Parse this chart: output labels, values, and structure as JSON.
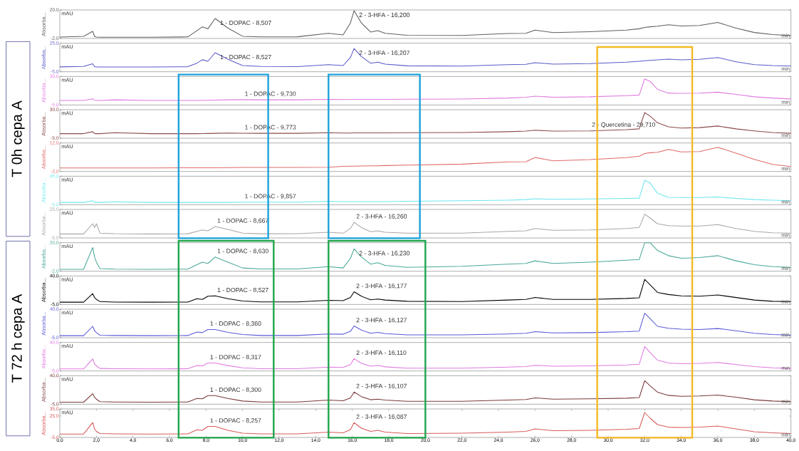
{
  "chart_data": [
    {
      "type": "line",
      "color": "#606060",
      "ylabel": "Absorba...",
      "xlabel": "min",
      "tick_labels": "y",
      "xlim": [
        0,
        40
      ],
      "ylim": [
        -2,
        20
      ],
      "yticks": [
        {
          "value": -2,
          "label": "-2,0"
        },
        {
          "value": 20,
          "label": "20,0"
        }
      ],
      "x": [
        0,
        1.3,
        1.8,
        1.9,
        2.0,
        2.2,
        3,
        5,
        7,
        7.5,
        7.8,
        8.1,
        8.5,
        9.2,
        10,
        11,
        13,
        14.7,
        15.5,
        15.9,
        16.1,
        16.5,
        17,
        17.4,
        17.8,
        19,
        22,
        24.5,
        25.5,
        26,
        27,
        29,
        31,
        31.7,
        32,
        32.3,
        32.7,
        33.3,
        34,
        35,
        36,
        37,
        38,
        39,
        40
      ],
      "values": [
        -0.9,
        -0.3,
        3.5,
        -0.5,
        -0.9,
        -1.0,
        -1.0,
        -1.0,
        -0.8,
        4,
        7,
        5.5,
        13.4,
        6,
        -0.3,
        -0.8,
        -0.7,
        2.0,
        0.8,
        10,
        19.5,
        10,
        3,
        4,
        2,
        0.5,
        0.3,
        1.8,
        2,
        4.5,
        2.5,
        3.2,
        4.5,
        5.5,
        6.5,
        7,
        7.5,
        8.6,
        7.6,
        8,
        10.4,
        6,
        2.6,
        1,
        0.2
      ],
      "annotations": [
        "mAU",
        {
          "text": "1 - DOPAC - 8,507",
          "x": 8.5,
          "y": 13.4
        },
        {
          "text": "2 - 3-HFA - 16,200",
          "x": 16.1,
          "y": 19.5
        }
      ]
    },
    {
      "type": "line",
      "color": "#5a5ac8",
      "ylabel": "Absorba...",
      "xlabel": "min",
      "tick_labels": "y",
      "xlim": [
        0,
        40
      ],
      "ylim": [
        -5,
        25
      ],
      "yticks": [
        {
          "value": -5,
          "label": "-5,0"
        },
        {
          "value": 25,
          "label": "25,0"
        }
      ],
      "x": [
        0,
        1.3,
        1.8,
        1.9,
        2.0,
        2.2,
        3,
        5,
        7,
        7.5,
        7.8,
        8.1,
        8.5,
        9.2,
        10,
        11,
        13,
        14.7,
        15.5,
        15.9,
        16.1,
        16.5,
        17,
        17.4,
        17.8,
        19,
        22,
        24.5,
        25.5,
        26,
        27,
        29,
        31,
        31.7,
        32,
        32.3,
        32.7,
        33.3,
        34,
        35,
        36,
        37,
        38,
        39,
        40
      ],
      "values": [
        0.1,
        0.6,
        3.4,
        0.4,
        0.1,
        0,
        0,
        0,
        0.3,
        4,
        7.6,
        6,
        15,
        8,
        1.5,
        0.5,
        0.4,
        2.5,
        1.5,
        10,
        19.4,
        11,
        4,
        5,
        3,
        1.2,
        1,
        2.5,
        2.8,
        4.5,
        3,
        3.5,
        5,
        6,
        6.5,
        7,
        7.5,
        8.2,
        7.5,
        8,
        10,
        5.5,
        2.5,
        1.5,
        1
      ],
      "annotations": [
        "mAU",
        {
          "text": "1 - DOPAC - 8,527",
          "x": 8.5,
          "y": 15
        },
        {
          "text": "2 - 3-HFA - 16,207",
          "x": 16.1,
          "y": 19.4
        },
        "T 0h cepa A"
      ]
    },
    {
      "type": "line",
      "color": "#e07be0",
      "ylabel": "Absorba...",
      "xlabel": "min",
      "tick_labels": "y",
      "xlim": [
        0,
        40
      ],
      "ylim": [
        -5,
        30
      ],
      "yticks": [
        {
          "value": -5,
          "label": "-5,0"
        },
        {
          "value": 30,
          "label": "30,0"
        }
      ],
      "x": [
        0,
        1.3,
        1.8,
        1.9,
        2.0,
        2.2,
        3,
        5,
        7,
        7.5,
        7.8,
        8.1,
        8.5,
        9.2,
        10,
        11,
        13,
        14.7,
        15.5,
        15.9,
        16.1,
        16.5,
        17,
        17.4,
        17.8,
        19,
        22,
        24.5,
        25.5,
        26,
        27,
        29,
        31,
        31.7,
        32,
        32.3,
        32.7,
        33.3,
        34,
        35,
        36,
        37,
        38,
        39,
        40
      ],
      "values": [
        0.6,
        0.6,
        2.5,
        0.7,
        0.6,
        0.6,
        1.3,
        0.6,
        0.6,
        0.6,
        0.7,
        0.8,
        1.0,
        1.3,
        1.5,
        1.3,
        1.3,
        1.8,
        1.6,
        1.7,
        1.8,
        1.8,
        1.8,
        1.9,
        1.9,
        2,
        2.3,
        3.5,
        4.5,
        5.8,
        4.5,
        5,
        6.5,
        7.2,
        27,
        24,
        14,
        9.6,
        9.3,
        9.5,
        10.7,
        8,
        5,
        3.5,
        2.4
      ],
      "annotations": [
        "mAU",
        {
          "text": "1 - DOPAC - 9,730",
          "x": 10,
          "y": 1.5
        }
      ]
    },
    {
      "type": "line",
      "color": "#8c4a4a",
      "ylabel": "Absorba...",
      "xlabel": "min",
      "tick_labels": "y",
      "xlim": [
        0,
        40
      ],
      "ylim": [
        -5,
        30
      ],
      "yticks": [
        {
          "value": -5,
          "label": "-5,0"
        },
        {
          "value": 30,
          "label": "30,0"
        }
      ],
      "x": [
        0,
        1.3,
        1.8,
        1.9,
        2.0,
        2.2,
        3,
        5,
        7,
        7.5,
        7.8,
        8.1,
        8.5,
        9.2,
        10,
        11,
        13,
        14.7,
        15.5,
        15.9,
        16.1,
        16.5,
        17,
        17.4,
        17.8,
        19,
        22,
        24.5,
        25.5,
        26,
        27,
        29,
        31,
        31.7,
        32,
        32.3,
        32.7,
        33.3,
        34,
        35,
        36,
        37,
        38,
        39,
        40
      ],
      "values": [
        0.6,
        0.6,
        3.0,
        0.7,
        0.6,
        0.6,
        1.8,
        0.6,
        0.6,
        0.6,
        0.7,
        0.8,
        1.0,
        1.3,
        1.2,
        1.0,
        1.0,
        1.8,
        1.3,
        1.4,
        1.5,
        1.5,
        1.5,
        1.6,
        1.6,
        1.7,
        2,
        3,
        3.8,
        4.8,
        3.8,
        4,
        5.5,
        6.5,
        26.5,
        22,
        14,
        9,
        7.5,
        8,
        10,
        6.5,
        4,
        2,
        1
      ],
      "annotations": [
        "mAU",
        {
          "text": "1 - DOPAC - 9,773",
          "x": 10,
          "y": 1.2
        },
        {
          "text": "2 - Quercetina - 29,710",
          "x": 29,
          "y": 4
        }
      ]
    },
    {
      "type": "line",
      "color": "#e06a6a",
      "ylabel": "Absorba...",
      "xlabel": "min",
      "tick_labels": "y",
      "xlim": [
        0,
        40
      ],
      "ylim": [
        -2,
        12
      ],
      "yticks": [
        {
          "value": -2,
          "label": "-2,0"
        },
        {
          "value": 12,
          "label": "12,0"
        }
      ],
      "x": [
        0,
        1.3,
        1.8,
        1.9,
        2.0,
        2.2,
        3,
        5,
        7,
        7.5,
        7.8,
        8.1,
        8.5,
        9.2,
        10,
        11,
        13,
        14.7,
        15.5,
        15.9,
        16.1,
        16.5,
        17,
        17.4,
        17.8,
        19,
        22,
        24.5,
        25.5,
        26,
        27,
        29,
        31,
        31.7,
        32,
        32.3,
        32.7,
        33.3,
        34,
        35,
        36,
        37,
        38,
        39,
        40
      ],
      "values": [
        -0.3,
        -0.3,
        -0.3,
        -0.3,
        -0.3,
        -0.3,
        -0.3,
        -0.3,
        -0.2,
        -0.2,
        -0.2,
        -0.2,
        -0.2,
        -0.1,
        0,
        0,
        0,
        0.1,
        0.5,
        0.6,
        0.6,
        0.7,
        0.8,
        0.8,
        0.9,
        1.1,
        1.6,
        2.7,
        2.8,
        4.9,
        3.2,
        3.8,
        4.8,
        5.5,
        6.8,
        7.2,
        7.4,
        8.8,
        7.6,
        7.8,
        9.9,
        7,
        3.9,
        1.5,
        0.4
      ],
      "annotations": [
        "mAU"
      ]
    },
    {
      "type": "line",
      "color": "#6ee6ee",
      "ylabel": "Absorba...",
      "xlabel": "min",
      "tick_labels": "y",
      "xlim": [
        0,
        40
      ],
      "ylim": [
        -5,
        45
      ],
      "yticks": [
        {
          "value": -5,
          "label": "-5,0"
        },
        {
          "value": 45,
          "label": "45,0"
        }
      ],
      "x": [
        0,
        1.3,
        1.8,
        1.9,
        2.0,
        2.2,
        3,
        5,
        7,
        7.5,
        7.8,
        8.1,
        8.5,
        9.2,
        10,
        11,
        13,
        14.7,
        15.5,
        15.9,
        16.1,
        16.5,
        17,
        17.4,
        17.8,
        19,
        22,
        24.5,
        25.5,
        26,
        27,
        29,
        31,
        31.7,
        32,
        32.3,
        32.7,
        33.3,
        34,
        35,
        36,
        37,
        38,
        39,
        40
      ],
      "values": [
        -1,
        -1,
        2,
        -1,
        -1,
        -1,
        0,
        -1,
        -1,
        -1,
        -1,
        -1,
        -1,
        -1,
        -0.5,
        -0.5,
        -0.5,
        1,
        0.5,
        0.5,
        0.5,
        0.5,
        0.5,
        0.5,
        0.5,
        1,
        2,
        3,
        4,
        5.5,
        4.5,
        5,
        6,
        6.5,
        38,
        33,
        15,
        8,
        7.5,
        7.5,
        8.5,
        6,
        4,
        3,
        2
      ],
      "annotations": [
        "mAU",
        {
          "text": "1 - DOPAC - 9,857",
          "x": 10,
          "y": -0.5
        }
      ]
    },
    {
      "type": "line",
      "color": "#a8a8a8",
      "ylabel": "Absorba...",
      "xlabel": "min",
      "tick_labels": "y",
      "xlim": [
        0,
        40
      ],
      "ylim": [
        -5,
        25
      ],
      "yticks": [
        {
          "value": -5,
          "label": "-5,0"
        },
        {
          "value": 25,
          "label": "25,0"
        }
      ],
      "x": [
        0,
        1.3,
        1.8,
        1.9,
        2.0,
        2.2,
        3,
        5,
        7,
        7.5,
        7.8,
        8.1,
        8.5,
        9.2,
        10,
        11,
        13,
        14.7,
        15.5,
        15.9,
        16.1,
        16.5,
        17,
        17.4,
        17.8,
        19,
        22,
        24.5,
        25.5,
        26,
        27,
        29,
        31,
        31.7,
        32,
        32.3,
        32.7,
        33.3,
        34,
        35,
        36,
        37,
        38,
        39,
        40
      ],
      "values": [
        -0.8,
        -0.8,
        10,
        6,
        10,
        0,
        -0.5,
        -0.8,
        -0.6,
        2,
        3.4,
        2.5,
        7,
        4,
        0,
        -0.6,
        -0.5,
        1,
        0,
        5,
        11.5,
        6,
        1.5,
        2.5,
        1,
        0,
        0,
        2,
        2.5,
        5,
        3,
        3.5,
        5,
        6,
        20,
        16,
        10,
        8,
        7.5,
        7.5,
        9,
        5,
        2,
        0.5,
        0
      ],
      "annotations": [
        "mAU",
        {
          "text": "1 - DOPAC - 8,667",
          "x": 8.5,
          "y": 7
        },
        {
          "text": "2 - 3-HFA - 16,260",
          "x": 16.1,
          "y": 11.5
        }
      ]
    },
    {
      "type": "line",
      "color": "#4aa898",
      "ylabel": "Absorba...",
      "xlabel": "min",
      "tick_labels": "y",
      "xlim": [
        0,
        40
      ],
      "ylim": [
        -2,
        20
      ],
      "yticks": [
        {
          "value": -2,
          "label": "-2,0"
        },
        {
          "value": 20,
          "label": "20,0"
        }
      ],
      "x": [
        0,
        1.3,
        1.8,
        1.9,
        2.0,
        2.2,
        3,
        5,
        7,
        7.5,
        7.8,
        8.1,
        8.5,
        9.2,
        10,
        11,
        13,
        14.7,
        15.5,
        15.9,
        16.1,
        16.5,
        17,
        17.4,
        17.8,
        19,
        22,
        24.5,
        25.5,
        26,
        27,
        29,
        31,
        31.7,
        32,
        32.3,
        32.7,
        33.3,
        34,
        35,
        36,
        37,
        38,
        39,
        40
      ],
      "values": [
        -0.5,
        -0.5,
        16.3,
        9,
        5,
        0,
        -0.4,
        -0.5,
        -0.4,
        3,
        5,
        4,
        9,
        5,
        0.5,
        -0.3,
        -0.3,
        1.5,
        0.5,
        8,
        15.2,
        9,
        3.5,
        4.6,
        2.5,
        1,
        1.8,
        3.5,
        4,
        6,
        4,
        5,
        6.5,
        7,
        20,
        20,
        14,
        10,
        8,
        8.5,
        10,
        6,
        3,
        1.5,
        1
      ],
      "annotations": [
        "mAU",
        {
          "text": "1 - DOPAC - 8,630",
          "x": 8.5,
          "y": 9
        },
        {
          "text": "2 - 3-HFA - 16,230",
          "x": 16.1,
          "y": 15.2
        },
        "T 72 h cepa A"
      ]
    },
    {
      "type": "line",
      "color": "#000000",
      "ylabel": "Absorba...",
      "xlabel": "min",
      "tick_labels": "y",
      "xlim": [
        0,
        40
      ],
      "ylim": [
        -5,
        40
      ],
      "yticks": [
        {
          "value": -5,
          "label": "-5,0"
        },
        {
          "value": 40,
          "label": "40,0"
        }
      ],
      "x": [
        0,
        1.3,
        1.8,
        1.9,
        2.0,
        2.2,
        3,
        5,
        7,
        7.5,
        7.8,
        8.1,
        8.5,
        9.2,
        10,
        11,
        13,
        14.7,
        15.5,
        15.9,
        16.1,
        16.5,
        17,
        17.4,
        17.8,
        19,
        22,
        24.5,
        25.5,
        26,
        27,
        29,
        31,
        31.7,
        32,
        32.3,
        32.7,
        33.3,
        34,
        35,
        36,
        37,
        38,
        39,
        40
      ],
      "values": [
        -1.4,
        -1.4,
        12,
        6,
        3,
        -0.5,
        -1.2,
        -1.4,
        -1.2,
        4,
        3,
        8,
        8.5,
        4,
        0.5,
        -1,
        -1,
        1.5,
        1,
        6,
        15,
        8,
        2.5,
        3.5,
        2,
        0,
        -0.5,
        2,
        3,
        6,
        3,
        3,
        4.5,
        5.5,
        34.6,
        26,
        14,
        10.7,
        8.5,
        8,
        10,
        6,
        2,
        0,
        -0.5
      ],
      "annotations": [
        "mAU",
        {
          "text": "1 - DOPAC - 8,527",
          "x": 8.5,
          "y": 8.5
        },
        {
          "text": "2 - 3-HFA - 16,177",
          "x": 16.1,
          "y": 15
        }
      ]
    },
    {
      "type": "line",
      "color": "#5a5ad8",
      "ylabel": "Absorba...",
      "xlabel": "min",
      "tick_labels": "y",
      "xlim": [
        0,
        40
      ],
      "ylim": [
        -5,
        40
      ],
      "yticks": [
        {
          "value": -5,
          "label": "-5,0"
        },
        {
          "value": 40,
          "label": "40,0"
        }
      ],
      "x": [
        0,
        1.3,
        1.8,
        1.9,
        2.0,
        2.2,
        3,
        5,
        7,
        7.5,
        7.8,
        8.1,
        8.5,
        9.2,
        10,
        11,
        13,
        14.7,
        15.5,
        15.9,
        16.1,
        16.5,
        17,
        17.4,
        17.8,
        19,
        22,
        24.5,
        25.5,
        26,
        27,
        29,
        31,
        31.7,
        32,
        32.3,
        32.7,
        33.3,
        34,
        35,
        36,
        37,
        38,
        39,
        40
      ],
      "values": [
        -1.8,
        -1.8,
        13,
        6,
        3,
        -1,
        -1.5,
        -1.8,
        -1.5,
        4,
        3,
        8,
        8,
        3.5,
        0,
        -1.5,
        -1.5,
        1,
        0.5,
        5,
        13.5,
        7,
        2,
        3.5,
        1.5,
        -0.5,
        -0.5,
        1,
        2,
        4.6,
        2.5,
        3,
        4.5,
        5.5,
        33.6,
        25,
        13,
        10,
        8.5,
        8,
        9.5,
        6,
        2,
        0,
        -1
      ],
      "annotations": [
        "mAU",
        {
          "text": "1 - DOPAC - 8,360",
          "x": 8.1,
          "y": 8
        },
        {
          "text": "2 - 3-HFA - 16,127",
          "x": 16.1,
          "y": 13.5
        }
      ]
    },
    {
      "type": "line",
      "color": "#e07be0",
      "ylabel": "Absorba...",
      "xlabel": "min",
      "tick_labels": "y",
      "xlim": [
        0,
        40
      ],
      "ylim": [
        -5,
        40
      ],
      "yticks": [
        {
          "value": -5,
          "label": "-5,0"
        },
        {
          "value": 40,
          "label": "40,0"
        }
      ],
      "x": [
        0,
        1.3,
        1.8,
        1.9,
        2.0,
        2.2,
        3,
        5,
        7,
        7.5,
        7.8,
        8.1,
        8.5,
        9.2,
        10,
        11,
        13,
        14.7,
        15.5,
        15.9,
        16.1,
        16.5,
        17,
        17.4,
        17.8,
        19,
        22,
        24.5,
        25.5,
        26,
        27,
        29,
        31,
        31.7,
        32,
        32.3,
        32.7,
        33.3,
        34,
        35,
        36,
        37,
        38,
        39,
        40
      ],
      "values": [
        -1.8,
        -1.8,
        14,
        6,
        3,
        -1,
        -1.5,
        -1.8,
        -1.5,
        3.5,
        3,
        7.5,
        7.5,
        3.5,
        0,
        -1.5,
        -1.5,
        1,
        0.5,
        5,
        14.5,
        7,
        2.5,
        4,
        1.5,
        -0.5,
        -0.5,
        1,
        2,
        4,
        2.5,
        3,
        4.5,
        5.5,
        33.6,
        24,
        12,
        7.6,
        6.5,
        7,
        8.5,
        5,
        2,
        0,
        -1
      ],
      "annotations": [
        "mAU",
        {
          "text": "1 - DOPAC - 8,317",
          "x": 8.1,
          "y": 7.5
        },
        {
          "text": "2 - 3-HFA - 16,110",
          "x": 16.1,
          "y": 14.5
        }
      ]
    },
    {
      "type": "line",
      "color": "#7a3a3a",
      "ylabel": "Absorba...",
      "xlabel": "min",
      "tick_labels": "y",
      "xlim": [
        0,
        40
      ],
      "ylim": [
        -5,
        40
      ],
      "yticks": [
        {
          "value": -5,
          "label": "-5,0"
        },
        {
          "value": 40,
          "label": "40,0"
        }
      ],
      "x": [
        0,
        1.3,
        1.8,
        1.9,
        2.0,
        2.2,
        3,
        5,
        7,
        7.5,
        7.8,
        8.1,
        8.5,
        9.2,
        10,
        11,
        13,
        14.7,
        15.5,
        15.9,
        16.1,
        16.5,
        17,
        17.4,
        17.8,
        19,
        22,
        24.5,
        25.5,
        26,
        27,
        29,
        31,
        31.7,
        32,
        32.3,
        32.7,
        33.3,
        34,
        35,
        36,
        37,
        38,
        39,
        40
      ],
      "values": [
        -1.8,
        -1.8,
        11.6,
        6,
        3,
        -1,
        -1.5,
        -1.8,
        -1.5,
        4,
        3.5,
        8.5,
        8.5,
        4,
        0,
        -1.5,
        -1.5,
        1.5,
        0.5,
        5,
        14.3,
        7,
        2,
        3,
        1.5,
        -0.5,
        -0.5,
        1.5,
        2.5,
        5,
        3,
        3.5,
        4.5,
        5.5,
        32,
        24,
        14,
        9,
        7.5,
        8,
        9.5,
        6,
        2,
        0,
        -1
      ],
      "annotations": [
        "mAU",
        {
          "text": "1 - DOPAC - 8,300",
          "x": 8.1,
          "y": 8.5
        },
        {
          "text": "2 - 3-HFA - 16,107",
          "x": 16.1,
          "y": 14.3
        }
      ]
    },
    {
      "type": "line",
      "color": "#d85a5a",
      "ylabel": "Absorba...",
      "xlabel": "min",
      "xlim": [
        0,
        40
      ],
      "ylim": [
        -5,
        35
      ],
      "yticks": [
        {
          "value": -5,
          "label": "-5,0"
        },
        {
          "value": 25,
          "label": "25,0"
        },
        {
          "value": 35,
          "label": "35,0"
        }
      ],
      "xticks": [
        {
          "value": 0,
          "label": "0,0"
        },
        {
          "value": 2,
          "label": "2,0"
        },
        {
          "value": 4,
          "label": "4,0"
        },
        {
          "value": 6,
          "label": "6,0"
        },
        {
          "value": 8,
          "label": "8,0"
        },
        {
          "value": 10,
          "label": "10,0"
        },
        {
          "value": 12,
          "label": "12,0"
        },
        {
          "value": 14,
          "label": "14,0"
        },
        {
          "value": 16,
          "label": "16,0"
        },
        {
          "value": 18,
          "label": "18,0"
        },
        {
          "value": 20,
          "label": "20,0"
        },
        {
          "value": 22,
          "label": "22,0"
        },
        {
          "value": 24,
          "label": "24,0"
        },
        {
          "value": 26,
          "label": "26,0"
        },
        {
          "value": 28,
          "label": "28,0"
        },
        {
          "value": 30,
          "label": "30,0"
        },
        {
          "value": 32,
          "label": "32,0"
        },
        {
          "value": 34,
          "label": "34,0"
        },
        {
          "value": 36,
          "label": "36,0"
        },
        {
          "value": 38,
          "label": "38,0"
        },
        {
          "value": 40,
          "label": "40,0"
        }
      ],
      "x": [
        0,
        1.3,
        1.8,
        1.9,
        2.0,
        2.2,
        3,
        5,
        7,
        7.5,
        7.8,
        8.1,
        8.5,
        9.2,
        10,
        11,
        13,
        14.7,
        15.5,
        15.9,
        16.1,
        16.5,
        17,
        17.4,
        17.8,
        19,
        22,
        24.5,
        25.5,
        26,
        27,
        29,
        31,
        31.7,
        32,
        32.3,
        32.7,
        33.3,
        34,
        35,
        36,
        37,
        38,
        39,
        40
      ],
      "values": [
        -0.2,
        -0.2,
        15.8,
        7,
        3.5,
        0.5,
        0,
        -0.2,
        0,
        5.8,
        5,
        10.5,
        10.5,
        5,
        1,
        0,
        0,
        2.5,
        1.5,
        6,
        15.8,
        8,
        3.5,
        5,
        2.5,
        0.5,
        1,
        2.5,
        3.5,
        7,
        4.5,
        5,
        6.5,
        7.5,
        30,
        22,
        13,
        9.4,
        9,
        9.5,
        11,
        7,
        3,
        1.5,
        0.5
      ],
      "annotations": [
        "mAU",
        {
          "text": "1 - DOPAC - 8,257",
          "x": 8.1,
          "y": 10.5
        },
        {
          "text": "2 - 3-HFA - 16,087",
          "x": 16.1,
          "y": 15.8
        }
      ]
    }
  ]
}
